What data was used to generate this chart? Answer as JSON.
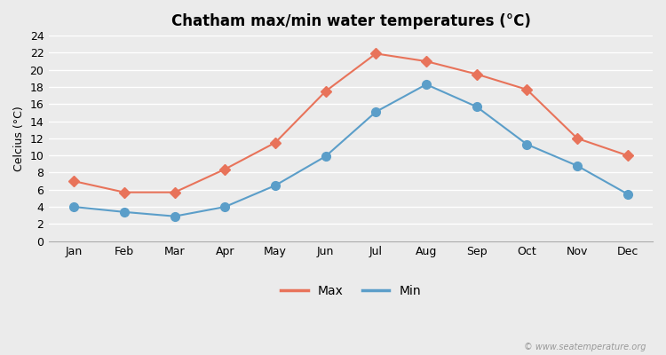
{
  "title": "Chatham max/min water temperatures (°C)",
  "xlabel_months": [
    "Jan",
    "Feb",
    "Mar",
    "Apr",
    "May",
    "Jun",
    "Jul",
    "Aug",
    "Sep",
    "Oct",
    "Nov",
    "Dec"
  ],
  "max_values": [
    7.0,
    5.7,
    5.7,
    8.4,
    11.5,
    17.5,
    21.9,
    21.0,
    19.5,
    17.7,
    12.0,
    10.0
  ],
  "min_values": [
    4.0,
    3.4,
    2.9,
    4.0,
    6.5,
    9.9,
    15.1,
    18.3,
    15.7,
    11.3,
    8.8,
    5.5
  ],
  "max_color": "#E8735A",
  "min_color": "#5B9EC9",
  "ylabel": "Celcius (°C)",
  "ylim": [
    0,
    24
  ],
  "yticks": [
    0,
    2,
    4,
    6,
    8,
    10,
    12,
    14,
    16,
    18,
    20,
    22,
    24
  ],
  "bg_color": "#EBEBEB",
  "plot_bg_color": "#EBEBEB",
  "grid_color": "#FFFFFF",
  "legend_labels": [
    "Max",
    "Min"
  ],
  "watermark": "© www.seatemperature.org",
  "max_marker": "D",
  "min_marker": "o",
  "linewidth": 1.5,
  "max_markersize": 6,
  "min_markersize": 7
}
